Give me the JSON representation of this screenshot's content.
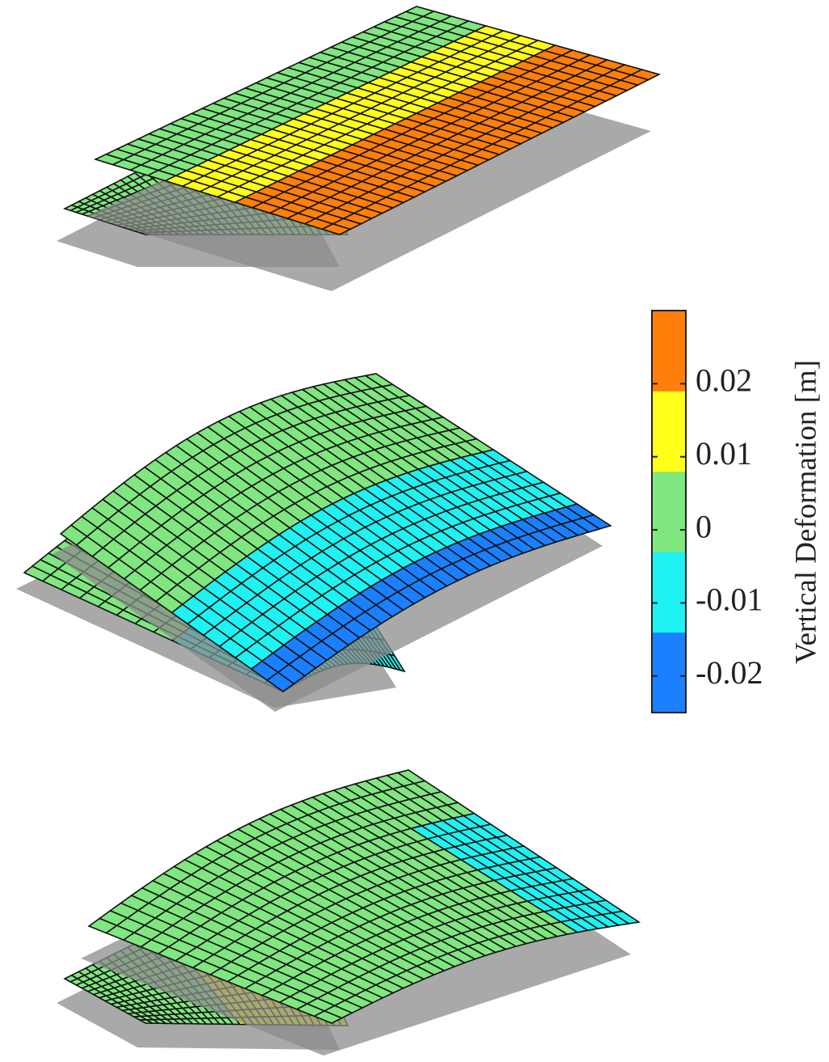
{
  "chart_data": {
    "type": "surface",
    "colorbar": {
      "label": "Vertical Deformation [m]",
      "ylim": [
        -0.025,
        0.03
      ],
      "yticks": [
        -0.02,
        -0.01,
        0,
        0.01,
        0.02
      ],
      "colors": [
        "#1a80ff",
        "#1ef2f2",
        "#80e680",
        "#ffff1a",
        "#ff7f0a"
      ]
    }
  }
}
